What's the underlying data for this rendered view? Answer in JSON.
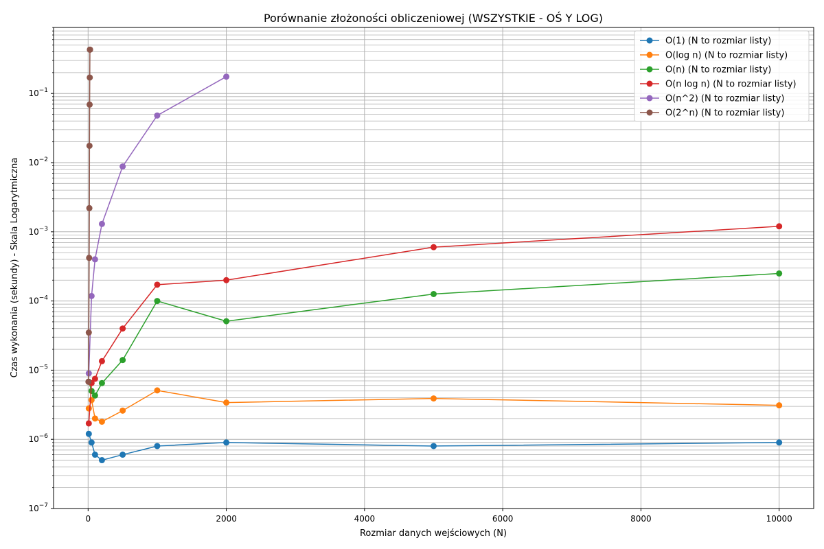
{
  "chart_data": {
    "type": "line",
    "title": "Porównanie złożoności obliczeniowej (WSZYSTKIE - OŚ Y LOG)",
    "xlabel": "Rozmiar danych wejściowych (N)",
    "ylabel": "Czas wykonania (sekundy) - Skala Logarytmiczna",
    "xlim": [
      -500,
      10500
    ],
    "ylim": [
      1e-07,
      0.9
    ],
    "yscale": "log",
    "grid": true,
    "legend_position": "top-right",
    "x_ticks": [
      0,
      2000,
      4000,
      6000,
      8000,
      10000
    ],
    "x_tick_labels": [
      "0",
      "2000",
      "4000",
      "6000",
      "8000",
      "10000"
    ],
    "y_ticks": [
      1e-07,
      1e-06,
      1e-05,
      0.0001,
      0.001,
      0.01,
      0.1
    ],
    "y_tick_labels": [
      {
        "base": "10",
        "exp": "−7"
      },
      {
        "base": "10",
        "exp": "−6"
      },
      {
        "base": "10",
        "exp": "−5"
      },
      {
        "base": "10",
        "exp": "−4"
      },
      {
        "base": "10",
        "exp": "−3"
      },
      {
        "base": "10",
        "exp": "−2"
      },
      {
        "base": "10",
        "exp": "−1"
      }
    ],
    "series": [
      {
        "name": "O(1) (N to rozmiar listy)",
        "color": "#1f77b4",
        "x": [
          10,
          50,
          100,
          200,
          500,
          1000,
          2000,
          5000,
          10000
        ],
        "y": [
          1.2e-06,
          9e-07,
          6e-07,
          5e-07,
          6e-07,
          8e-07,
          9e-07,
          8e-07,
          9e-07
        ]
      },
      {
        "name": "O(log n) (N to rozmiar listy)",
        "color": "#ff7f0e",
        "x": [
          10,
          50,
          100,
          200,
          500,
          1000,
          2000,
          5000,
          10000
        ],
        "y": [
          2.8e-06,
          3.7e-06,
          2e-06,
          1.8e-06,
          2.6e-06,
          5.1e-06,
          3.4e-06,
          3.9e-06,
          3.1e-06
        ]
      },
      {
        "name": "O(n) (N to rozmiar listy)",
        "color": "#2ca02c",
        "x": [
          10,
          50,
          100,
          200,
          500,
          1000,
          2000,
          5000,
          10000
        ],
        "y": [
          6.8e-06,
          5e-06,
          4.3e-06,
          6.5e-06,
          1.4e-05,
          0.0001,
          5.1e-05,
          0.000126,
          0.00025
        ]
      },
      {
        "name": "O(n log n) (N to rozmiar listy)",
        "color": "#d62728",
        "x": [
          10,
          50,
          100,
          200,
          500,
          1000,
          2000,
          5000,
          10000
        ],
        "y": [
          1.7e-06,
          6.5e-06,
          7.5e-06,
          1.35e-05,
          4e-05,
          0.000172,
          0.0002,
          0.0006,
          0.0012
        ]
      },
      {
        "name": "O(n^2) (N to rozmiar listy)",
        "color": "#9467bd",
        "x": [
          10,
          50,
          100,
          200,
          500,
          1000,
          2000
        ],
        "y": [
          9e-06,
          0.000118,
          0.0004,
          0.0013,
          0.0088,
          0.048,
          0.175
        ]
      },
      {
        "name": "O(2^n) (N to rozmiar listy)",
        "color": "#8c564b",
        "x": [
          5,
          10,
          15,
          18,
          20,
          22,
          24,
          26,
          28
        ],
        "y": [
          6.8e-06,
          3.5e-05,
          0.00042,
          0.0022,
          0.0175,
          0.069,
          0.17,
          0.43,
          0.43
        ]
      }
    ]
  }
}
